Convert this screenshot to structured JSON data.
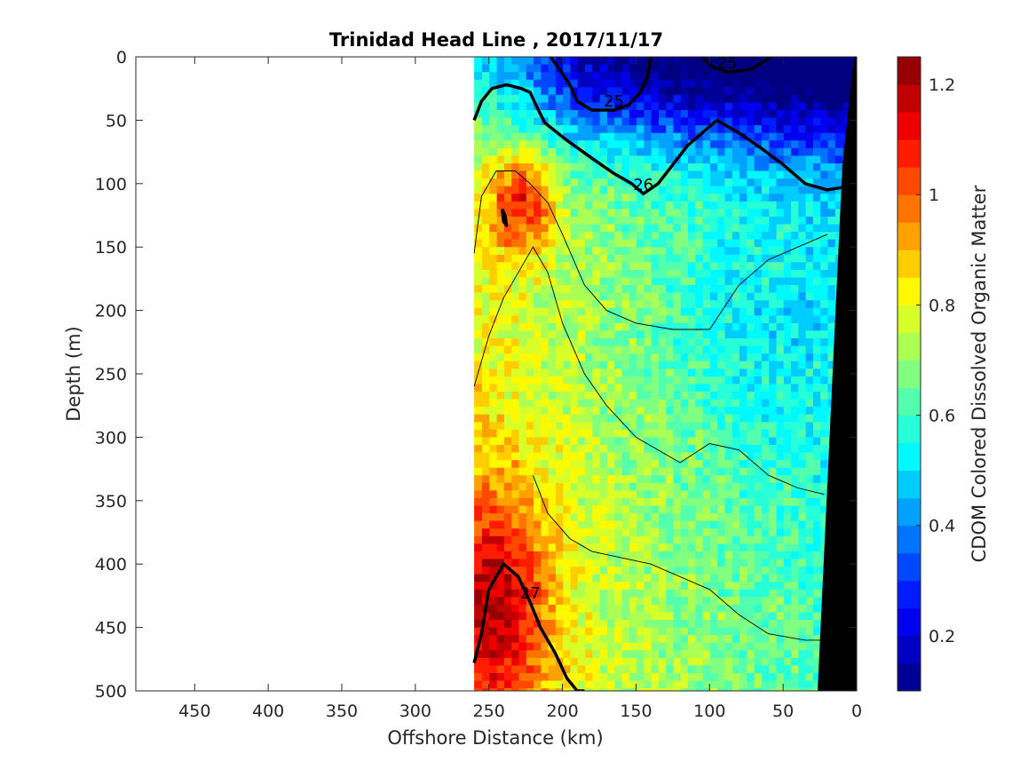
{
  "chart_data": {
    "type": "heatmap",
    "title": "Trinidad Head Line , 2017/11/17",
    "xlabel": "Offshore Distance (km)",
    "ylabel": "Depth (m)",
    "colorbar_label": "CDOM Colored Dissolved Organic Matter",
    "xlim": [
      490,
      0
    ],
    "ylim": [
      0,
      500
    ],
    "x_reversed": true,
    "y_reversed": true,
    "x_ticks": [
      450,
      400,
      350,
      300,
      250,
      200,
      150,
      100,
      50,
      0
    ],
    "y_ticks": [
      0,
      50,
      100,
      150,
      200,
      250,
      300,
      350,
      400,
      450,
      500
    ],
    "colorbar": {
      "range": [
        0.1,
        1.25
      ],
      "ticks": [
        0.2,
        0.4,
        0.6,
        0.8,
        1,
        1.2
      ],
      "colormap": "jet",
      "levels": 23
    },
    "data_extent_km": [
      0,
      260
    ],
    "grid": false,
    "density_contours": [
      {
        "label": "25",
        "bold": true,
        "x": [
          208,
          202,
          195,
          190,
          180,
          165,
          155,
          147,
          142,
          140
        ],
        "y": [
          0,
          10,
          22,
          35,
          42,
          42,
          38,
          28,
          15,
          0
        ]
      },
      {
        "label": "25",
        "bold": true,
        "x": [
          105,
          98,
          88,
          72,
          58
        ],
        "y": [
          0,
          8,
          12,
          10,
          0
        ]
      },
      {
        "label": "26",
        "bold": true,
        "x": [
          260,
          255,
          248,
          238,
          228,
          222,
          218,
          212,
          198,
          180,
          165,
          153,
          145,
          135,
          125,
          115,
          105,
          95,
          80,
          65,
          50,
          35,
          20,
          10
        ],
        "y": [
          50,
          35,
          25,
          22,
          25,
          28,
          38,
          52,
          65,
          80,
          92,
          100,
          108,
          100,
          85,
          70,
          60,
          50,
          60,
          72,
          85,
          100,
          105,
          103
        ]
      },
      {
        "label": "",
        "bold": true,
        "x": [
          241,
          239,
          238,
          240,
          241
        ],
        "y": [
          120,
          125,
          133,
          130,
          120
        ]
      },
      {
        "label": "27",
        "bold": true,
        "x": [
          260,
          255,
          250,
          240,
          230,
          222,
          215,
          205,
          197,
          190,
          185
        ],
        "y": [
          478,
          455,
          420,
          400,
          410,
          430,
          450,
          470,
          490,
          500,
          500
        ]
      }
    ]
  }
}
